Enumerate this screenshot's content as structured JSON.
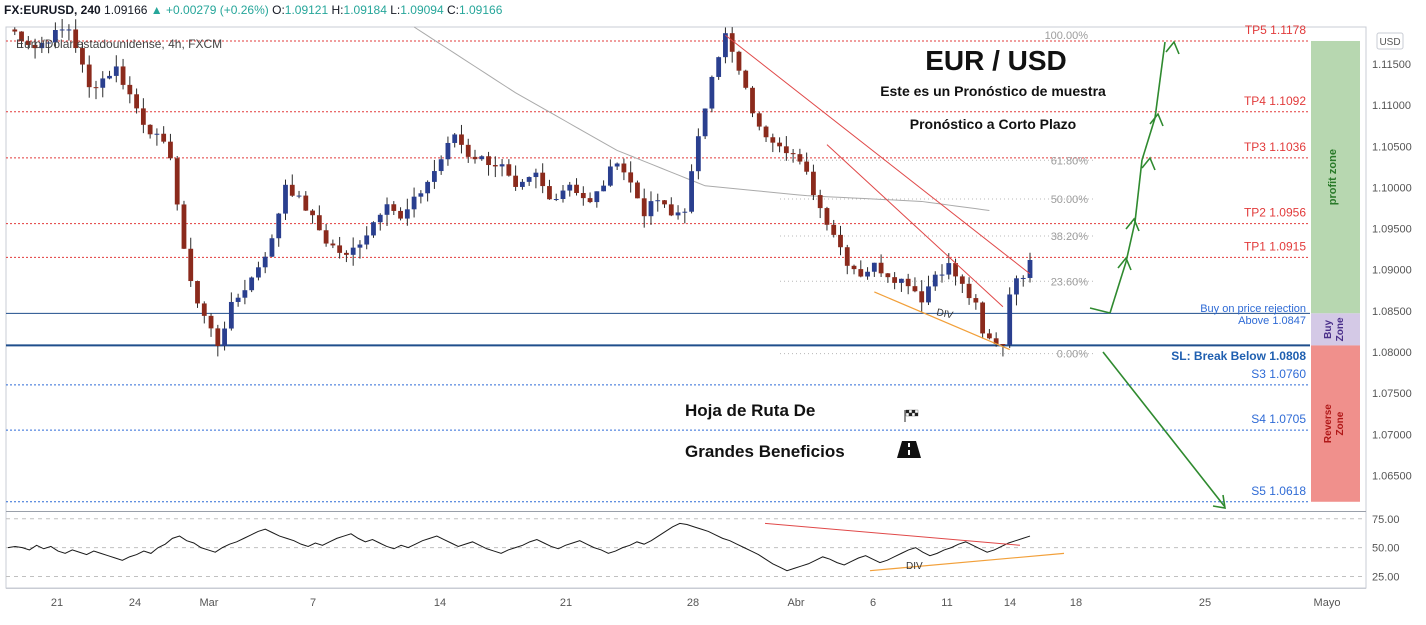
{
  "header": {
    "symbol": "FX:EURUSD, 240",
    "last": "1.09166",
    "change_arrow": "▲",
    "change": "+0.00279 (+0.26%)",
    "o_label": "O:",
    "o_val": "1.09121",
    "h_label": "H:",
    "h_val": "1.09184",
    "l_label": "L:",
    "l_val": "1.09094",
    "c_label": "C:",
    "c_val": "1.09166",
    "subtitle": "Euro/Dólar estadounidense, 4h, FXCM",
    "currency_badge": "USD"
  },
  "annotations": {
    "title": "EUR / USD",
    "line1": "Este es un Pronóstico de muestra",
    "line2": "Pronóstico a Corto Plazo",
    "roadmap1": "Hoja de Ruta De",
    "roadmap2": "Grandes Beneficios",
    "flag_icon": "checkered-flag-icon",
    "road_icon": "road-icon",
    "div_label_price": "DIV",
    "div_label_rsi": "DIV",
    "buy_rejection": "Buy on price rejection",
    "above": "Above 1.0847",
    "sl": "SL: Break Below 1.0808"
  },
  "zones": {
    "profit": {
      "label": "profit zone",
      "color": "#b7d7b0",
      "text_color": "#2a7a2a",
      "from": 1.0847,
      "to": 1.1178
    },
    "buy": {
      "label1": "Buy",
      "label2": "Zone",
      "color": "#d4c9e6",
      "text_color": "#4a2f8a",
      "from": 1.0808,
      "to": 1.0847
    },
    "reverse": {
      "label1": "Reverse",
      "label2": "Zone",
      "color": "#f0908c",
      "text_color": "#b01818",
      "from": 1.0618,
      "to": 1.0808
    }
  },
  "levels": [
    {
      "label": "TP5 1.1178",
      "value": 1.1178,
      "color": "#e23b3b",
      "style": "dotted"
    },
    {
      "label": "TP4 1.1092",
      "value": 1.1092,
      "color": "#e23b3b",
      "style": "dotted"
    },
    {
      "label": "TP3 1.1036",
      "value": 1.1036,
      "color": "#e23b3b",
      "style": "dotted"
    },
    {
      "label": "TP2 1.0956",
      "value": 1.0956,
      "color": "#e23b3b",
      "style": "dotted"
    },
    {
      "label": "TP1 1.0915",
      "value": 1.0915,
      "color": "#e23b3b",
      "style": "dotted"
    },
    {
      "label": "",
      "value": 1.0847,
      "color": "#1f4e8c",
      "style": "solid"
    },
    {
      "label": "",
      "value": 1.0808,
      "color": "#1f4e8c",
      "style": "thick"
    },
    {
      "label": "S3 1.0760",
      "value": 1.076,
      "color": "#2f6bd6",
      "style": "dotted"
    },
    {
      "label": "S4 1.0705",
      "value": 1.0705,
      "color": "#2f6bd6",
      "style": "dotted"
    },
    {
      "label": "S5 1.0618",
      "value": 1.0618,
      "color": "#2f6bd6",
      "style": "dotted"
    }
  ],
  "fib": [
    {
      "label": "100.00%",
      "value": 1.1185
    },
    {
      "label": "61.80%",
      "value": 1.1033
    },
    {
      "label": "50.00%",
      "value": 1.0986
    },
    {
      "label": "38.20%",
      "value": 1.0941
    },
    {
      "label": "23.60%",
      "value": 1.0886
    },
    {
      "label": "0.00%",
      "value": 1.0798
    }
  ],
  "chart_data": {
    "type": "candlestick",
    "y_axis": {
      "min": 1.0608,
      "max": 1.1195,
      "ticks": [
        "1.11500",
        "1.11000",
        "1.10500",
        "1.10000",
        "1.09500",
        "1.09000",
        "1.08500",
        "1.08000",
        "1.07500",
        "1.07000",
        "1.06500"
      ]
    },
    "x_axis": {
      "ticks": [
        "21",
        "24",
        "Mar",
        "7",
        "14",
        "21",
        "28",
        "Abr",
        "6",
        "11",
        "14",
        "18",
        "25",
        "Mayo"
      ]
    },
    "series": [
      {
        "name": "",
        "type": "candles",
        "path": [
          [
            0,
            1.1195
          ],
          [
            4,
            1.117
          ],
          [
            9,
            1.1198
          ],
          [
            12,
            1.112
          ],
          [
            16,
            1.1145
          ],
          [
            20,
            1.108
          ],
          [
            24,
            1.104
          ],
          [
            26,
            1.092
          ],
          [
            28,
            1.086
          ],
          [
            31,
            1.081
          ],
          [
            33,
            1.0855
          ],
          [
            36,
            1.089
          ],
          [
            39,
            1.0935
          ],
          [
            41,
            1.1005
          ],
          [
            44,
            1.0975
          ],
          [
            47,
            1.0935
          ],
          [
            50,
            1.0915
          ],
          [
            53,
            1.0945
          ],
          [
            56,
            1.0985
          ],
          [
            58,
            1.096
          ],
          [
            61,
            1.0995
          ],
          [
            63,
            1.102
          ],
          [
            66,
            1.1065
          ],
          [
            68,
            1.104
          ],
          [
            70,
            1.1035
          ],
          [
            73,
            1.1025
          ],
          [
            75,
            1.0995
          ],
          [
            78,
            1.1015
          ],
          [
            80,
            1.0985
          ],
          [
            83,
            1.1005
          ],
          [
            86,
            1.098
          ],
          [
            88,
            1.1005
          ],
          [
            90,
            1.1035
          ],
          [
            92,
            1.1005
          ],
          [
            94,
            1.097
          ],
          [
            96,
            1.0985
          ],
          [
            98,
            1.0965
          ],
          [
            100,
            1.0975
          ],
          [
            104,
            1.114
          ],
          [
            106,
            1.1185
          ],
          [
            108,
            1.114
          ],
          [
            111,
            1.107
          ],
          [
            114,
            1.1055
          ],
          [
            116,
            1.104
          ],
          [
            118,
            1.1015
          ],
          [
            120,
            1.0975
          ],
          [
            122,
            1.0945
          ],
          [
            124,
            1.091
          ],
          [
            126,
            1.0895
          ],
          [
            128,
            1.0905
          ],
          [
            131,
            1.089
          ],
          [
            133,
            1.0885
          ],
          [
            135,
            1.0865
          ],
          [
            137,
            1.0895
          ],
          [
            139,
            1.0905
          ],
          [
            141,
            1.088
          ],
          [
            143,
            1.0855
          ],
          [
            144,
            1.082
          ],
          [
            145,
            1.0815
          ],
          [
            147,
            1.081
          ],
          [
            148,
            1.0875
          ],
          [
            150,
            1.0895
          ],
          [
            151,
            1.0917
          ]
        ]
      },
      {
        "name": "",
        "type": "ma",
        "path": [
          [
            60,
            1.1195
          ],
          [
            75,
            1.1115
          ],
          [
            90,
            1.1045
          ],
          [
            103,
            1.1002
          ],
          [
            118,
            1.099
          ],
          [
            135,
            1.0983
          ],
          [
            145,
            1.0972
          ]
        ]
      }
    ]
  },
  "rsi": {
    "ticks": [
      "75.00",
      "50.00",
      "25.00"
    ],
    "min": 15,
    "max": 80,
    "values": [
      50,
      51,
      50,
      48,
      52,
      49,
      51,
      47,
      45,
      48,
      46,
      44,
      47,
      45,
      43,
      41,
      39,
      42,
      44,
      47,
      45,
      50,
      53,
      58,
      60,
      56,
      54,
      50,
      48,
      46,
      50,
      53,
      55,
      58,
      61,
      64,
      66,
      63,
      60,
      58,
      56,
      53,
      51,
      54,
      52,
      55,
      58,
      60,
      62,
      58,
      55,
      57,
      54,
      51,
      49,
      52,
      50,
      53,
      56,
      58,
      60,
      57,
      54,
      51,
      53,
      55,
      52,
      49,
      47,
      45,
      48,
      50,
      52,
      55,
      57,
      54,
      51,
      49,
      52,
      54,
      56,
      53,
      50,
      48,
      45,
      47,
      50,
      52,
      55,
      53,
      56,
      60,
      64,
      68,
      71,
      70,
      68,
      66,
      64,
      61,
      58,
      56,
      53,
      50,
      47,
      44,
      40,
      36,
      33,
      30,
      32,
      34,
      36,
      39,
      42,
      40,
      37,
      35,
      38,
      41,
      43,
      40,
      37,
      39,
      42,
      45,
      48,
      50,
      46,
      43,
      45,
      48,
      50,
      53,
      55,
      52,
      49,
      46,
      48,
      51,
      54,
      56,
      58,
      60
    ]
  }
}
